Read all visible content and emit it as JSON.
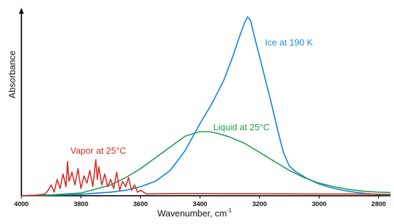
{
  "chart_data": {
    "type": "line",
    "title": "",
    "xlabel": "Wavenumber, cm",
    "xlabel_superscript": "-1",
    "ylabel": "Absorbance",
    "x_reversed": true,
    "xlim": [
      4000,
      2760
    ],
    "ylim": [
      0,
      1
    ],
    "y_ticks_shown": false,
    "grid": false,
    "legend": "none (inline series labels)",
    "x_ticks": [
      {
        "value": 4000,
        "label": "4000"
      },
      {
        "value": 3800,
        "label": "3800"
      },
      {
        "value": 3600,
        "label": "3600"
      },
      {
        "value": 3400,
        "label": "3400"
      },
      {
        "value": 3200,
        "label": "3200"
      },
      {
        "value": 3000,
        "label": "3000"
      },
      {
        "value": 2800,
        "label": "2800"
      }
    ],
    "series": [
      {
        "name": "Ice at 190 K",
        "color": "#1a8fd6",
        "x": [
          4000,
          3900,
          3800,
          3700,
          3650,
          3600,
          3550,
          3500,
          3450,
          3400,
          3360,
          3320,
          3290,
          3270,
          3250,
          3240,
          3230,
          3220,
          3200,
          3180,
          3160,
          3140,
          3120,
          3100,
          3080,
          3060,
          3040,
          3020,
          3000,
          2960,
          2920,
          2880,
          2840,
          2800,
          2760
        ],
        "y": [
          0.0,
          0.003,
          0.008,
          0.02,
          0.03,
          0.05,
          0.08,
          0.14,
          0.25,
          0.4,
          0.51,
          0.64,
          0.77,
          0.87,
          0.96,
          0.99,
          0.97,
          0.9,
          0.77,
          0.64,
          0.51,
          0.37,
          0.24,
          0.165,
          0.135,
          0.115,
          0.095,
          0.08,
          0.065,
          0.045,
          0.03,
          0.02,
          0.012,
          0.007,
          0.005
        ]
      },
      {
        "name": "Liquid at 25°C",
        "color": "#1f9a4a",
        "x": [
          4000,
          3900,
          3800,
          3700,
          3650,
          3600,
          3550,
          3500,
          3450,
          3400,
          3370,
          3340,
          3300,
          3250,
          3200,
          3150,
          3100,
          3050,
          3000,
          2950,
          2900,
          2850,
          2800,
          2760
        ],
        "y": [
          0.0,
          0.005,
          0.015,
          0.06,
          0.1,
          0.15,
          0.21,
          0.27,
          0.33,
          0.355,
          0.355,
          0.345,
          0.325,
          0.29,
          0.24,
          0.19,
          0.14,
          0.1,
          0.07,
          0.05,
          0.035,
          0.025,
          0.02,
          0.018
        ]
      },
      {
        "name": "Vapor at 25°C",
        "color": "#d42a20",
        "x": [
          4000,
          3950,
          3920,
          3910,
          3900,
          3890,
          3880,
          3870,
          3860,
          3850,
          3845,
          3840,
          3830,
          3820,
          3810,
          3800,
          3790,
          3780,
          3770,
          3760,
          3750,
          3745,
          3740,
          3730,
          3720,
          3710,
          3700,
          3690,
          3680,
          3670,
          3660,
          3650,
          3640,
          3630,
          3620,
          3610,
          3600,
          3580,
          3500,
          3400,
          3300,
          3200,
          3000,
          2900,
          2760
        ],
        "y": [
          0.0,
          0.004,
          0.01,
          0.03,
          0.06,
          0.02,
          0.09,
          0.04,
          0.12,
          0.05,
          0.19,
          0.08,
          0.13,
          0.06,
          0.15,
          0.04,
          0.11,
          0.07,
          0.14,
          0.05,
          0.2,
          0.09,
          0.16,
          0.06,
          0.12,
          0.05,
          0.09,
          0.04,
          0.13,
          0.03,
          0.08,
          0.05,
          0.1,
          0.03,
          0.06,
          0.02,
          0.03,
          0.01,
          0.012,
          0.012,
          0.011,
          0.011,
          0.01,
          0.01,
          0.008
        ]
      }
    ],
    "annotations": [
      {
        "series": "Ice at 190 K",
        "text": "Ice at 190 K"
      },
      {
        "series": "Liquid at 25°C",
        "text": "Liquid at 25°C"
      },
      {
        "series": "Vapor at 25°C",
        "text": "Vapor at 25°C"
      }
    ]
  }
}
